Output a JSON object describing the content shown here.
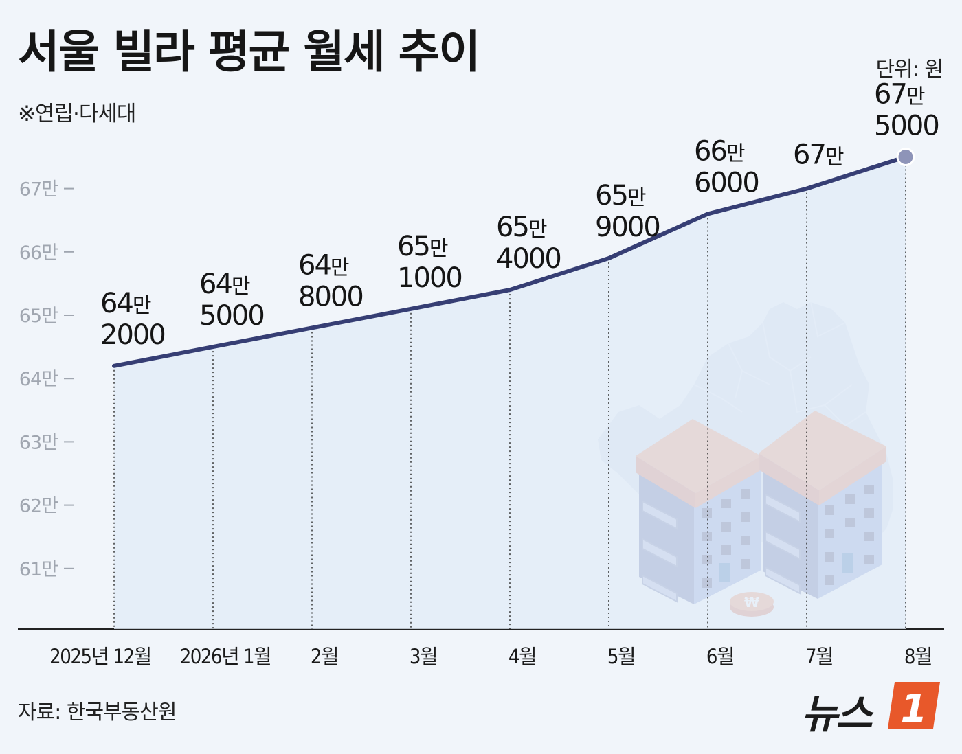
{
  "title": "서울 빌라 평균 월세 추이",
  "subtitle": "※연립·다세대",
  "unit": "단위: 원",
  "source": "자료: 한국부동산원",
  "logo": {
    "text": "뉴스",
    "badge": "1"
  },
  "colors": {
    "line": "#363e74",
    "area": "#e2ecf8",
    "marker": "#8e94b8",
    "background": "#f1f5fa"
  },
  "chart_data": {
    "type": "line",
    "title": "서울 빌라 평균 월세 추이",
    "subtitle": "※연립·다세대",
    "unit": "단위: 원",
    "categories": [
      "2025년 12월",
      "2026년 1월",
      "2월",
      "3월",
      "4월",
      "5월",
      "6월",
      "7월",
      "8월"
    ],
    "values": [
      642000,
      645000,
      648000,
      651000,
      654000,
      659000,
      666000,
      670000,
      675000
    ],
    "labels": [
      [
        "64만",
        "2000"
      ],
      [
        "64만",
        "5000"
      ],
      [
        "64만",
        "8000"
      ],
      [
        "65만",
        "1000"
      ],
      [
        "65만",
        "4000"
      ],
      [
        "65만",
        "9000"
      ],
      [
        "66만",
        "6000"
      ],
      [
        "67만",
        ""
      ],
      [
        "67만",
        "5000"
      ]
    ],
    "y_ticks": [
      {
        "value": 610000,
        "label": "61만"
      },
      {
        "value": 620000,
        "label": "62만"
      },
      {
        "value": 630000,
        "label": "63만"
      },
      {
        "value": 640000,
        "label": "64만"
      },
      {
        "value": 650000,
        "label": "65만"
      },
      {
        "value": 660000,
        "label": "66만"
      },
      {
        "value": 670000,
        "label": "67만"
      }
    ],
    "ylim": [
      600000,
      680000
    ],
    "grid": false,
    "legend": "none",
    "highlight_last": true
  }
}
